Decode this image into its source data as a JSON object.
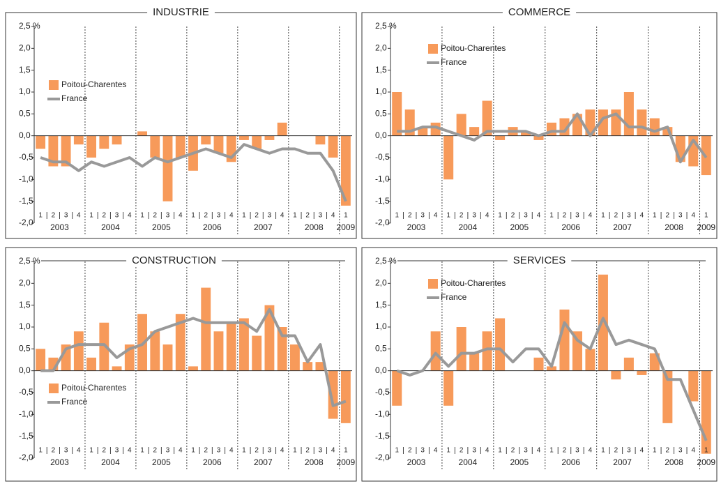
{
  "chart_data": [
    {
      "type": "combo",
      "title": "INDUSTRIE",
      "legend": "center left",
      "categories": [
        "1",
        "2",
        "3",
        "4",
        "1",
        "2",
        "3",
        "4",
        "1",
        "2",
        "3",
        "4",
        "1",
        "2",
        "3",
        "4",
        "1",
        "2",
        "3",
        "4",
        "1",
        "2",
        "3",
        "4",
        "1"
      ],
      "year_labels": [
        "2003",
        "2004",
        "2005",
        "2006",
        "2007",
        "2008",
        "2009"
      ],
      "ylim": [
        -2,
        2.5
      ],
      "yticks": [
        {
          "value": -2,
          "label": "-2,0"
        },
        {
          "value": -1.5,
          "label": "-1,5"
        },
        {
          "value": -1,
          "label": "-1,0"
        },
        {
          "value": -0.5,
          "label": "-0,5"
        },
        {
          "value": 0,
          "label": "0,0"
        },
        {
          "value": 0.5,
          "label": "0,5"
        },
        {
          "value": 1,
          "label": "1,0"
        },
        {
          "value": 1.5,
          "label": "1,5"
        },
        {
          "value": 2,
          "label": "2,0"
        },
        {
          "value": 2.5,
          "label": "2,5 %"
        }
      ],
      "series": [
        {
          "name": "Poitou-Charentes",
          "type": "bar",
          "color": "#f79a5a",
          "values": [
            -0.3,
            -0.7,
            -0.7,
            -0.2,
            -0.5,
            -0.3,
            -0.2,
            0,
            0.1,
            -0.5,
            -1.5,
            -0.5,
            -0.8,
            -0.2,
            -0.4,
            -0.6,
            -0.1,
            -0.3,
            -0.1,
            0.3,
            0,
            0,
            -0.2,
            -0.5,
            -1.6
          ]
        },
        {
          "name": "France",
          "type": "line",
          "color": "#999999",
          "values": [
            -0.5,
            -0.6,
            -0.6,
            -0.8,
            -0.6,
            -0.7,
            -0.6,
            -0.5,
            -0.7,
            -0.5,
            -0.6,
            -0.5,
            -0.4,
            -0.3,
            -0.4,
            -0.5,
            -0.2,
            -0.3,
            -0.4,
            -0.3,
            -0.3,
            -0.4,
            -0.4,
            -0.8,
            -1.5
          ]
        }
      ]
    },
    {
      "type": "combo",
      "title": "COMMERCE",
      "legend": "upper left",
      "categories": [
        "1",
        "2",
        "3",
        "4",
        "1",
        "2",
        "3",
        "4",
        "1",
        "2",
        "3",
        "4",
        "1",
        "2",
        "3",
        "4",
        "1",
        "2",
        "3",
        "4",
        "1",
        "2",
        "3",
        "4",
        "1"
      ],
      "year_labels": [
        "2003",
        "2004",
        "2005",
        "2006",
        "2007",
        "2008",
        "2009"
      ],
      "ylim": [
        -2,
        2.5
      ],
      "yticks": [
        {
          "value": -2,
          "label": "-2,0"
        },
        {
          "value": -1.5,
          "label": "-1,5"
        },
        {
          "value": -1,
          "label": "-1,0"
        },
        {
          "value": -0.5,
          "label": "-0,5"
        },
        {
          "value": 0,
          "label": "0,0"
        },
        {
          "value": 0.5,
          "label": "0,5"
        },
        {
          "value": 1,
          "label": "1,0"
        },
        {
          "value": 1.5,
          "label": "1,5"
        },
        {
          "value": 2,
          "label": "2,0"
        },
        {
          "value": 2.5,
          "label": "2,5 %"
        }
      ],
      "series": [
        {
          "name": "Poitou-Charentes",
          "type": "bar",
          "color": "#f79a5a",
          "values": [
            1.0,
            0.6,
            0.2,
            0.3,
            -1.0,
            0.5,
            0.2,
            0.8,
            -0.1,
            0.2,
            0.1,
            -0.1,
            0.3,
            0.4,
            0.5,
            0.6,
            0.6,
            0.6,
            1.0,
            0.6,
            0.4,
            0.2,
            -0.6,
            -0.7,
            -0.9
          ]
        },
        {
          "name": "France",
          "type": "line",
          "color": "#999999",
          "values": [
            0.1,
            0.1,
            0.2,
            0.2,
            0.1,
            0,
            -0.1,
            0.1,
            0.1,
            0.1,
            0.1,
            0,
            0.1,
            0.1,
            0.5,
            0,
            0.4,
            0.5,
            0.2,
            0.2,
            0.1,
            0.2,
            -0.6,
            -0.1,
            -0.5
          ]
        }
      ]
    },
    {
      "type": "combo",
      "title": "CONSTRUCTION",
      "legend": "lower left",
      "categories": [
        "1",
        "2",
        "3",
        "4",
        "1",
        "2",
        "3",
        "4",
        "1",
        "2",
        "3",
        "4",
        "1",
        "2",
        "3",
        "4",
        "1",
        "2",
        "3",
        "4",
        "1",
        "2",
        "3",
        "4",
        "1"
      ],
      "year_labels": [
        "2003",
        "2004",
        "2005",
        "2006",
        "2007",
        "2008",
        "2009"
      ],
      "ylim": [
        -2,
        2.5
      ],
      "yticks": [
        {
          "value": -2,
          "label": "-2,0"
        },
        {
          "value": -1.5,
          "label": "-1,5"
        },
        {
          "value": -1,
          "label": "-1,0"
        },
        {
          "value": -0.5,
          "label": "-0,5"
        },
        {
          "value": 0,
          "label": "0,0"
        },
        {
          "value": 0.5,
          "label": "0,5"
        },
        {
          "value": 1,
          "label": "1,0"
        },
        {
          "value": 1.5,
          "label": "1,5"
        },
        {
          "value": 2,
          "label": "2,0"
        },
        {
          "value": 2.5,
          "label": "2,5 %"
        }
      ],
      "series": [
        {
          "name": "Poitou-Charentes",
          "type": "bar",
          "color": "#f79a5a",
          "values": [
            0.5,
            0.3,
            0.6,
            0.9,
            0.3,
            1.1,
            0.1,
            0.6,
            1.3,
            0.9,
            0.6,
            1.3,
            0.1,
            1.9,
            0.9,
            1.1,
            1.2,
            0.8,
            1.5,
            1.0,
            0.6,
            0.2,
            0.2,
            -1.1,
            -1.2
          ]
        },
        {
          "name": "France",
          "type": "line",
          "color": "#999999",
          "values": [
            0,
            0,
            0.5,
            0.6,
            0.6,
            0.6,
            0.3,
            0.5,
            0.6,
            0.9,
            1.0,
            1.1,
            1.2,
            1.1,
            1.1,
            1.1,
            1.1,
            0.9,
            1.4,
            0.8,
            0.8,
            0.2,
            0.6,
            -0.8,
            -0.7
          ]
        }
      ]
    },
    {
      "type": "combo",
      "title": "SERVICES",
      "legend": "upper left",
      "categories": [
        "1",
        "2",
        "3",
        "4",
        "1",
        "2",
        "3",
        "4",
        "1",
        "2",
        "3",
        "4",
        "1",
        "2",
        "3",
        "4",
        "1",
        "2",
        "3",
        "4",
        "1",
        "2",
        "3",
        "4",
        "1"
      ],
      "year_labels": [
        "2003",
        "2004",
        "2005",
        "2006",
        "2007",
        "2008",
        "2009"
      ],
      "ylim": [
        -2,
        2.5
      ],
      "yticks": [
        {
          "value": -2,
          "label": "-2,0"
        },
        {
          "value": -1.5,
          "label": "-1,5"
        },
        {
          "value": -1,
          "label": "-1,0"
        },
        {
          "value": -0.5,
          "label": "-0,5"
        },
        {
          "value": 0,
          "label": "0,0"
        },
        {
          "value": 0.5,
          "label": "0,5"
        },
        {
          "value": 1,
          "label": "1,0"
        },
        {
          "value": 1.5,
          "label": "1,5"
        },
        {
          "value": 2,
          "label": "2,0"
        },
        {
          "value": 2.5,
          "label": "2,5 %"
        }
      ],
      "series": [
        {
          "name": "Poitou-Charentes",
          "type": "bar",
          "color": "#f79a5a",
          "values": [
            -0.8,
            0,
            0,
            0.9,
            -0.8,
            1.0,
            0.4,
            0.9,
            1.2,
            0,
            0,
            0.3,
            0.1,
            1.4,
            0.9,
            0.5,
            2.2,
            -0.2,
            0.3,
            -0.1,
            0.4,
            -1.2,
            0,
            -0.7,
            -1.9
          ]
        },
        {
          "name": "France",
          "type": "line",
          "color": "#999999",
          "values": [
            0,
            -0.1,
            0,
            0.4,
            0.1,
            0.4,
            0.4,
            0.5,
            0.5,
            0.2,
            0.5,
            0.5,
            0.1,
            1.1,
            0.7,
            0.5,
            1.2,
            0.6,
            0.7,
            0.6,
            0.5,
            -0.2,
            -0.2,
            -0.9,
            -1.6
          ]
        }
      ]
    }
  ]
}
